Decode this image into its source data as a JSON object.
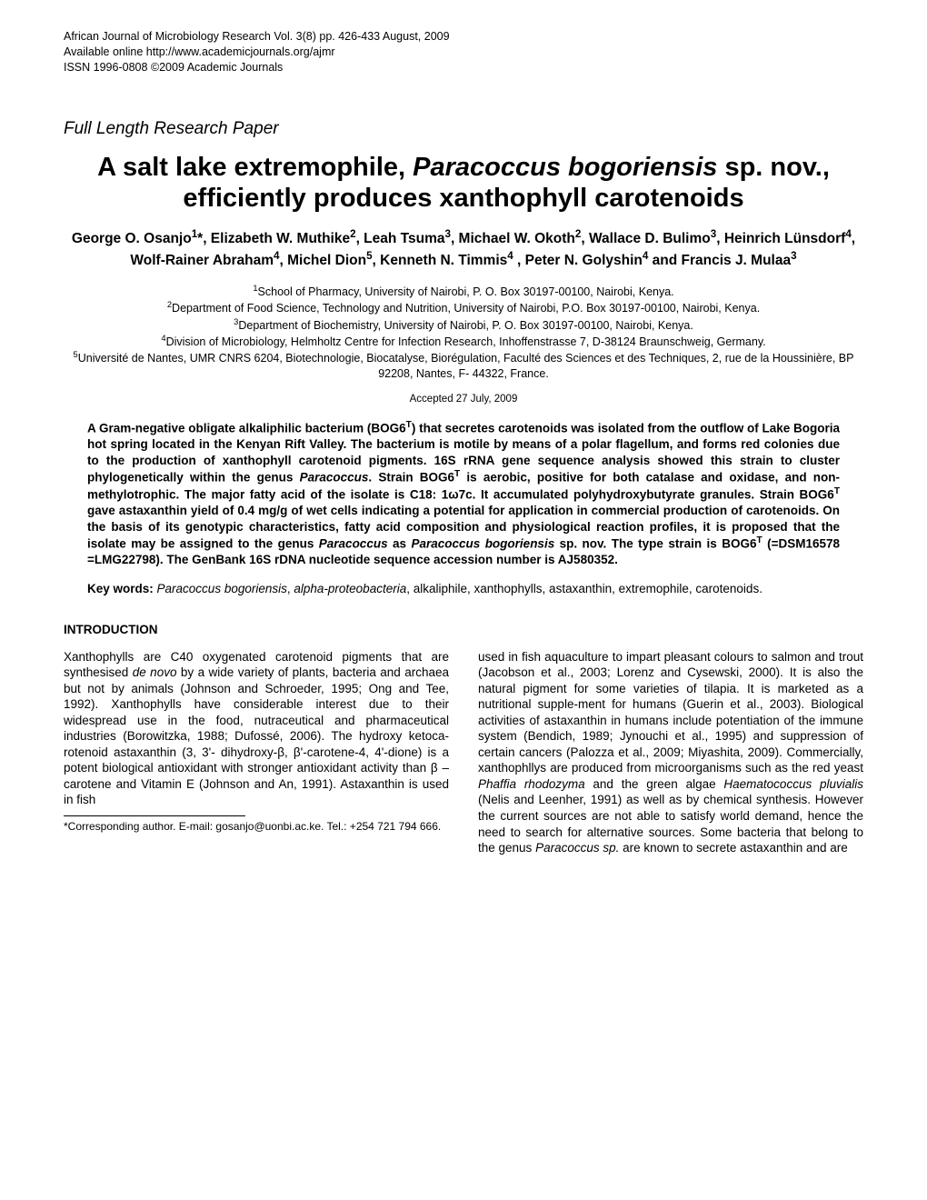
{
  "meta": {
    "journal_line": "African Journal of Microbiology Research Vol. 3(8) pp. 426-433 August, 2009",
    "online_line": "Available online http://www.academicjournals.org/ajmr",
    "issn_line": "ISSN 1996-0808 ©2009 Academic Journals",
    "paper_type": "Full Length Research Paper",
    "accepted": "Accepted 27 July, 2009"
  },
  "title": {
    "pre": "A salt lake extremophile, ",
    "species": "Paracoccus bogoriensis",
    "post": " sp. nov., efficiently produces xanthophyll carotenoids"
  },
  "authors": {
    "a1_name": "George O. Osanjo",
    "a1_sup": "1",
    "a2_name": "*, Elizabeth W. Muthike",
    "a2_sup": "2",
    "a3_name": ", Leah Tsuma",
    "a3_sup": "3",
    "a4_name": ", Michael W. Okoth",
    "a4_sup": "2",
    "a5_name": ", Wallace D. Bulimo",
    "a5_sup": "3",
    "a6_name": ", Heinrich Lünsdorf",
    "a6_sup": "4",
    "a7_name": ", Wolf-Rainer Abraham",
    "a7_sup": "4",
    "a8_name": ", Michel Dion",
    "a8_sup": "5",
    "a9_name": ", Kenneth N. Timmis",
    "a9_sup": "4",
    "a10_name": " , Peter N. Golyshin",
    "a10_sup": "4",
    "a11_name": " and Francis J. Mulaa",
    "a11_sup": "3"
  },
  "affiliations": {
    "a1_sup": "1",
    "a1_text": "School of Pharmacy, University of Nairobi, P. O. Box 30197-00100, Nairobi, Kenya.",
    "a2_sup": "2",
    "a2_text": "Department of Food Science, Technology and Nutrition, University of Nairobi, P.O. Box 30197-00100, Nairobi, Kenya.",
    "a3_sup": "3",
    "a3_text": "Department of Biochemistry, University of Nairobi, P. O. Box 30197-00100, Nairobi, Kenya.",
    "a4_sup": "4",
    "a4_text": "Division of Microbiology, Helmholtz Centre for Infection Research, Inhoffenstrasse 7, D-38124 Braunschweig, Germany.",
    "a5_sup": "5",
    "a5_text": "Université de Nantes, UMR CNRS 6204, Biotechnologie, Biocatalyse, Biorégulation, Faculté des Sciences et des Techniques, 2, rue de la Houssinière, BP 92208, Nantes, F- 44322, France."
  },
  "abstract": {
    "p1a": "A Gram-negative obligate alkaliphilic bacterium (BOG6",
    "p1a_sup": "T",
    "p1b": ") that secretes carotenoids was isolated from the outflow of Lake Bogoria hot spring located in the Kenyan Rift Valley. The bacterium is motile by means of a polar flagellum, and forms red colonies due to the production of xanthophyll carotenoid pigments. 16S rRNA gene sequence analysis showed this strain to cluster phylogenetically within the genus ",
    "p1c_italic": "Paracoccus",
    "p1d": ". Strain BOG6",
    "p1d_sup": "T",
    "p1e": " is aerobic, positive for both catalase and oxidase, and non-methylotrophic. The major fatty acid of the isolate is C18: 1ω7c. It accumulated polyhydroxybutyrate granules. Strain BOG6",
    "p1e_sup": "T",
    "p1f": " gave astaxanthin yield of 0.4 mg/g of wet cells indicating a potential for application in commercial production of carotenoids. On the basis of its genotypic characteristics, fatty acid composition and physiological reaction profiles, it is proposed that the isolate may be assigned to the genus ",
    "p1g_italic": "Paracoccus",
    "p1h": " as ",
    "p1i_italic": "Paracoccus bogoriensis",
    "p1j": " sp. nov. The type strain is BOG6",
    "p1j_sup": "T",
    "p1k": " (=DSM16578 =LMG22798). The GenBank 16S rDNA nucleotide sequence accession number is AJ580352."
  },
  "keywords": {
    "label": "Key words: ",
    "k1_italic": "Paracoccus bogoriensis",
    "k_sep1": ", ",
    "k2_italic": "alpha-proteobacteria",
    "k_rest": ", alkaliphile, xanthophylls, astaxanthin, extremophile, carotenoids."
  },
  "intro": {
    "heading": "INTRODUCTION",
    "col1_a": "Xanthophylls are C40 oxygenated carotenoid pigments that are synthesised ",
    "col1_b_italic": "de novo",
    "col1_c": " by a wide variety of plants, bacteria and archaea but not by animals (Johnson and Schroeder, 1995; Ong and Tee, 1992). Xanthophylls have considerable interest due to their widespread use in the food, nutraceutical and pharmaceutical industries (Borowitzka, 1988; Dufossé, 2006). The hydroxy ketoca-rotenoid astaxanthin (3, 3'- dihydroxy-β, β'-carotene-4, 4'-dione) is a potent biological antioxidant with stronger antioxidant activity than β –carotene and Vitamin E (Johnson and An, 1991). Astaxanthin is used in  fish",
    "col2_a": "used in fish aquaculture to impart pleasant colours to salmon and trout (Jacobson et al., 2003; Lorenz and Cysewski, 2000). It is also the natural pigment for some varieties of tilapia. It is marketed as a nutritional supple-ment for humans (Guerin et al., 2003). Biological activities of astaxanthin in humans include potentiation of the immune system (Bendich, 1989; Jynouchi et al., 1995) and suppression of certain cancers (Palozza et al., 2009; Miyashita, 2009). Commercially, xanthophllys are produced from microorganisms such as the red yeast ",
    "col2_b_italic": "Phaffia rhodozyma",
    "col2_c": " and the green algae ",
    "col2_d_italic": "Haematococcus pluvialis",
    "col2_e": " (Nelis and Leenher, 1991) as well as by chemical synthesis. However the current sources are not able to satisfy world demand, hence the need to search for alternative sources. Some bacteria that belong to the genus ",
    "col2_f_italic": "Paracoccus sp.",
    "col2_g": " are  known to  secrete astaxanthin  and  are"
  },
  "footnote": {
    "text": "*Corresponding author. E-mail: gosanjo@uonbi.ac.ke. Tel.: +254 721 794 666."
  },
  "style": {
    "background_color": "#ffffff",
    "text_color": "#000000",
    "base_fontsize": 13.5,
    "title_fontsize": 29,
    "authors_fontsize": 15.5,
    "meta_fontsize": 12.5,
    "font_family": "Arial"
  }
}
